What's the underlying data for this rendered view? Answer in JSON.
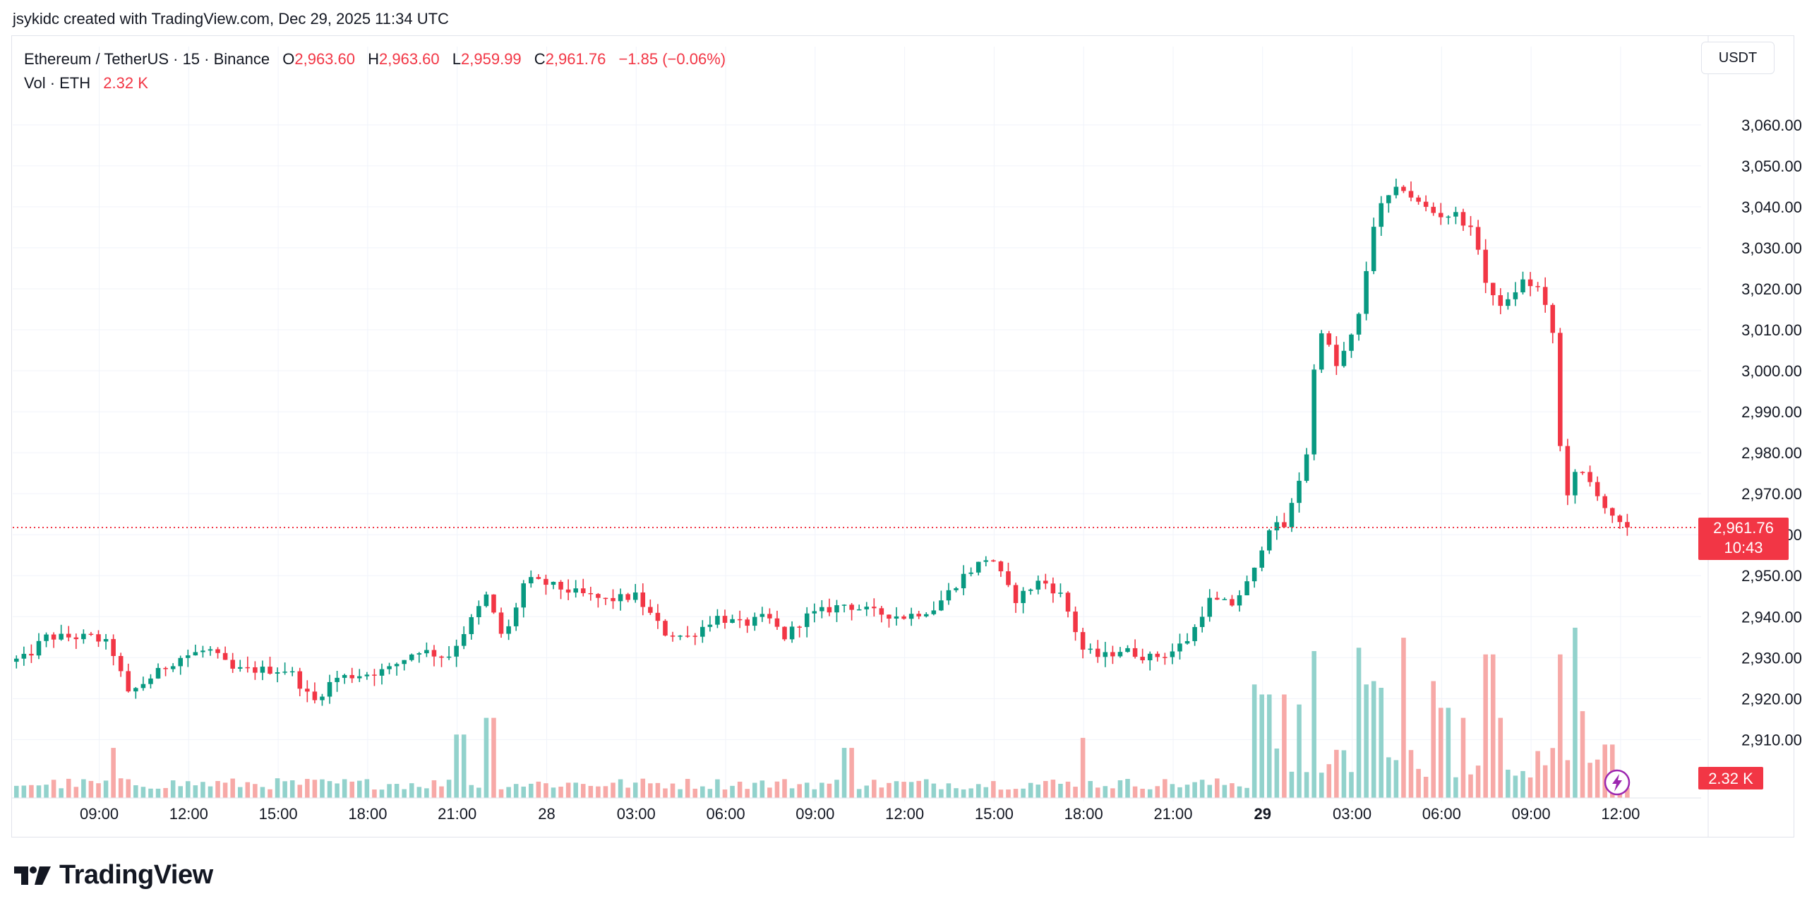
{
  "header": {
    "text": "jsykidc created with TradingView.com, Dec 29, 2025 11:34 UTC"
  },
  "legend": {
    "symbol": "Ethereum / TetherUS · 15 · Binance",
    "o_label": "O",
    "o_value": "2,963.60",
    "h_label": "H",
    "h_value": "2,963.60",
    "l_label": "L",
    "l_value": "2,959.99",
    "c_label": "C",
    "c_value": "2,961.76",
    "change": "−1.85 (−0.06%)",
    "vol_label": "Vol · ETH",
    "vol_value": "2.32 K"
  },
  "currency_button": {
    "label": "USDT"
  },
  "last_price": {
    "label": "2,961.76",
    "countdown": "10:43",
    "value": 2961.76
  },
  "volume_badge": {
    "label": "2.32 K"
  },
  "brand": {
    "name": "TradingView"
  },
  "colors": {
    "up": "#089981",
    "down": "#f23645",
    "up_vol": "#92d2cc",
    "down_vol": "#f7a9a7",
    "grid": "#f0f3fa",
    "accent_icon": "#9c27b0"
  },
  "icons": {
    "brand": "tradingview-logo",
    "lightning": "lightning-icon"
  },
  "chart_data": {
    "type": "candlestick",
    "interval": "15",
    "y_ticks": [
      "3,060.00",
      "3,050.00",
      "3,040.00",
      "3,030.00",
      "3,020.00",
      "3,010.00",
      "3,000.00",
      "2,990.00",
      "2,980.00",
      "2,970.00",
      "2,960.00",
      "2,950.00",
      "2,940.00",
      "2,930.00",
      "2,920.00",
      "2,910.00"
    ],
    "y_range": [
      2903,
      3066
    ],
    "x_ticks": [
      {
        "label": "09:00",
        "t": 5.5,
        "bold": false
      },
      {
        "label": "12:00",
        "t": 8.5,
        "bold": false
      },
      {
        "label": "15:00",
        "t": 11.5,
        "bold": false
      },
      {
        "label": "18:00",
        "t": 14.5,
        "bold": false
      },
      {
        "label": "21:00",
        "t": 17.5,
        "bold": false
      },
      {
        "label": "28",
        "t": 20.5,
        "bold": false
      },
      {
        "label": "03:00",
        "t": 23.5,
        "bold": false
      },
      {
        "label": "06:00",
        "t": 26.5,
        "bold": false
      },
      {
        "label": "09:00",
        "t": 29.5,
        "bold": false
      },
      {
        "label": "12:00",
        "t": 32.5,
        "bold": false
      },
      {
        "label": "15:00",
        "t": 35.5,
        "bold": false
      },
      {
        "label": "18:00",
        "t": 38.5,
        "bold": false
      },
      {
        "label": "21:00",
        "t": 41.5,
        "bold": false
      },
      {
        "label": "29",
        "t": 44.5,
        "bold": true
      },
      {
        "label": "03:00",
        "t": 47.5,
        "bold": false
      },
      {
        "label": "06:00",
        "t": 50.5,
        "bold": false
      },
      {
        "label": "09:00",
        "t": 53.5,
        "bold": false
      },
      {
        "label": "12:00",
        "t": 56.5,
        "bold": false
      }
    ],
    "t_range": [
      2.6,
      59.2
    ],
    "volume_max": 5.5,
    "keypoints": [
      {
        "t": 2.6,
        "p": 2929
      },
      {
        "t": 3.2,
        "p": 2930
      },
      {
        "t": 3.8,
        "p": 2935
      },
      {
        "t": 4.6,
        "p": 2935
      },
      {
        "t": 5.4,
        "p": 2935
      },
      {
        "t": 6.0,
        "p": 2933
      },
      {
        "t": 6.6,
        "p": 2921
      },
      {
        "t": 7.5,
        "p": 2926
      },
      {
        "t": 8.3,
        "p": 2930
      },
      {
        "t": 9.3,
        "p": 2932
      },
      {
        "t": 10.1,
        "p": 2927
      },
      {
        "t": 11.0,
        "p": 2927
      },
      {
        "t": 12.0,
        "p": 2927
      },
      {
        "t": 12.8,
        "p": 2919
      },
      {
        "t": 13.5,
        "p": 2925
      },
      {
        "t": 14.5,
        "p": 2926
      },
      {
        "t": 15.3,
        "p": 2927
      },
      {
        "t": 16.3,
        "p": 2932
      },
      {
        "t": 17.3,
        "p": 2930
      },
      {
        "t": 18.0,
        "p": 2938
      },
      {
        "t": 18.6,
        "p": 2945
      },
      {
        "t": 19.2,
        "p": 2934
      },
      {
        "t": 19.9,
        "p": 2949
      },
      {
        "t": 20.6,
        "p": 2948
      },
      {
        "t": 21.5,
        "p": 2946
      },
      {
        "t": 22.6,
        "p": 2944
      },
      {
        "t": 23.6,
        "p": 2945
      },
      {
        "t": 24.6,
        "p": 2936
      },
      {
        "t": 25.4,
        "p": 2935
      },
      {
        "t": 26.3,
        "p": 2940
      },
      {
        "t": 27.2,
        "p": 2938
      },
      {
        "t": 28.0,
        "p": 2940
      },
      {
        "t": 28.6,
        "p": 2935
      },
      {
        "t": 29.3,
        "p": 2940
      },
      {
        "t": 30.6,
        "p": 2943
      },
      {
        "t": 31.6,
        "p": 2941
      },
      {
        "t": 32.6,
        "p": 2940
      },
      {
        "t": 33.6,
        "p": 2942
      },
      {
        "t": 34.6,
        "p": 2950
      },
      {
        "t": 35.5,
        "p": 2955
      },
      {
        "t": 36.3,
        "p": 2944
      },
      {
        "t": 37.2,
        "p": 2949
      },
      {
        "t": 37.9,
        "p": 2945
      },
      {
        "t": 38.6,
        "p": 2932
      },
      {
        "t": 39.2,
        "p": 2930
      },
      {
        "t": 39.9,
        "p": 2932
      },
      {
        "t": 40.8,
        "p": 2930
      },
      {
        "t": 41.5,
        "p": 2931
      },
      {
        "t": 42.2,
        "p": 2935
      },
      {
        "t": 42.8,
        "p": 2944
      },
      {
        "t": 43.6,
        "p": 2943
      },
      {
        "t": 44.3,
        "p": 2950
      },
      {
        "t": 44.8,
        "p": 2962
      },
      {
        "t": 45.4,
        "p": 2962
      },
      {
        "t": 46.1,
        "p": 2980
      },
      {
        "t": 46.5,
        "p": 3012
      },
      {
        "t": 47.1,
        "p": 3001
      },
      {
        "t": 47.8,
        "p": 3011
      },
      {
        "t": 48.4,
        "p": 3038
      },
      {
        "t": 48.8,
        "p": 3042
      },
      {
        "t": 49.3,
        "p": 3045
      },
      {
        "t": 49.8,
        "p": 3041
      },
      {
        "t": 50.5,
        "p": 3038
      },
      {
        "t": 51.2,
        "p": 3038
      },
      {
        "t": 51.8,
        "p": 3032
      },
      {
        "t": 52.2,
        "p": 3018
      },
      {
        "t": 52.8,
        "p": 3016
      },
      {
        "t": 53.3,
        "p": 3022
      },
      {
        "t": 53.9,
        "p": 3020
      },
      {
        "t": 54.4,
        "p": 3008
      },
      {
        "t": 54.7,
        "p": 2968
      },
      {
        "t": 55.2,
        "p": 2976
      },
      {
        "t": 55.8,
        "p": 2971
      },
      {
        "t": 56.3,
        "p": 2964
      },
      {
        "t": 56.7,
        "p": 2961.76
      }
    ],
    "volume_spikes": [
      {
        "t": 5.9,
        "v": 1.5
      },
      {
        "t": 17.6,
        "v": 1.9
      },
      {
        "t": 18.6,
        "v": 2.4
      },
      {
        "t": 30.6,
        "v": 1.5
      },
      {
        "t": 38.5,
        "v": 1.8
      },
      {
        "t": 44.3,
        "v": 3.4
      },
      {
        "t": 44.6,
        "v": 3.1
      },
      {
        "t": 45.3,
        "v": 3.1
      },
      {
        "t": 45.8,
        "v": 2.8
      },
      {
        "t": 46.3,
        "v": 4.4
      },
      {
        "t": 47.8,
        "v": 4.5
      },
      {
        "t": 48.0,
        "v": 3.4
      },
      {
        "t": 48.2,
        "v": 3.5
      },
      {
        "t": 48.4,
        "v": 3.3
      },
      {
        "t": 49.3,
        "v": 4.8
      },
      {
        "t": 50.3,
        "v": 3.5
      },
      {
        "t": 50.6,
        "v": 2.7
      },
      {
        "t": 51.2,
        "v": 2.4
      },
      {
        "t": 52.1,
        "v": 4.3
      },
      {
        "t": 52.4,
        "v": 2.4
      },
      {
        "t": 54.5,
        "v": 4.3
      },
      {
        "t": 54.9,
        "v": 5.1
      },
      {
        "t": 55.3,
        "v": 2.6
      },
      {
        "t": 56.1,
        "v": 1.6
      }
    ]
  }
}
